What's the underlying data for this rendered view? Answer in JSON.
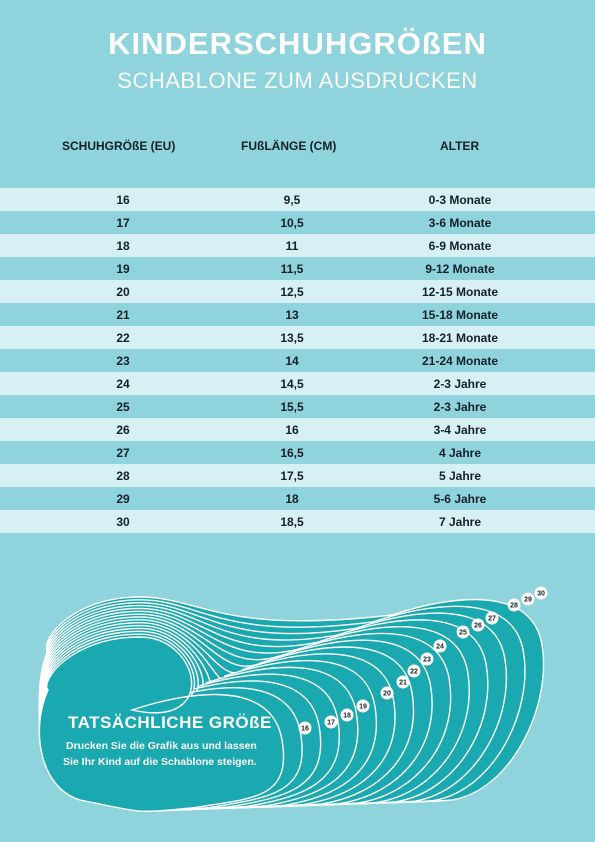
{
  "header": {
    "title": "KINDERSCHUHGRÖßEN",
    "subtitle": "SCHABLONE ZUM AUSDRUCKEN"
  },
  "columns": {
    "size": "SCHUHGRÖßE (EU)",
    "foot_length": "FUßLÄNGE (CM)",
    "age": "ALTER"
  },
  "rows": [
    {
      "size": "16",
      "length": "9,5",
      "age": "0-3 Monate"
    },
    {
      "size": "17",
      "length": "10,5",
      "age": "3-6 Monate"
    },
    {
      "size": "18",
      "length": "11",
      "age": "6-9 Monate"
    },
    {
      "size": "19",
      "length": "11,5",
      "age": "9-12 Monate"
    },
    {
      "size": "20",
      "length": "12,5",
      "age": "12-15 Monate"
    },
    {
      "size": "21",
      "length": "13",
      "age": "15-18 Monate"
    },
    {
      "size": "22",
      "length": "13,5",
      "age": "18-21 Monate"
    },
    {
      "size": "23",
      "length": "14",
      "age": "21-24 Monate"
    },
    {
      "size": "24",
      "length": "14,5",
      "age": "2-3 Jahre"
    },
    {
      "size": "25",
      "length": "15,5",
      "age": "2-3 Jahre"
    },
    {
      "size": "26",
      "length": "16",
      "age": "3-4 Jahre"
    },
    {
      "size": "27",
      "length": "16,5",
      "age": "4 Jahre"
    },
    {
      "size": "28",
      "length": "17,5",
      "age": "5 Jahre"
    },
    {
      "size": "29",
      "length": "18",
      "age": "5-6 Jahre"
    },
    {
      "size": "30",
      "length": "18,5",
      "age": "7 Jahre"
    }
  ],
  "template": {
    "title": "TATSÄCHLICHE GRÖßE",
    "line1": "Drucken Sie die Grafik aus und lassen",
    "line2": "Sie Ihr Kind auf die Schablone steigen.",
    "size_labels": [
      "16",
      "17",
      "18",
      "19",
      "20",
      "21",
      "22",
      "23",
      "24",
      "25",
      "26",
      "27",
      "28",
      "29",
      "30"
    ]
  },
  "colors": {
    "background": "#8fd3dc",
    "row_light": "#d6f0f3",
    "template_fill": "#1aa9b0",
    "text_dark": "#15202a"
  }
}
